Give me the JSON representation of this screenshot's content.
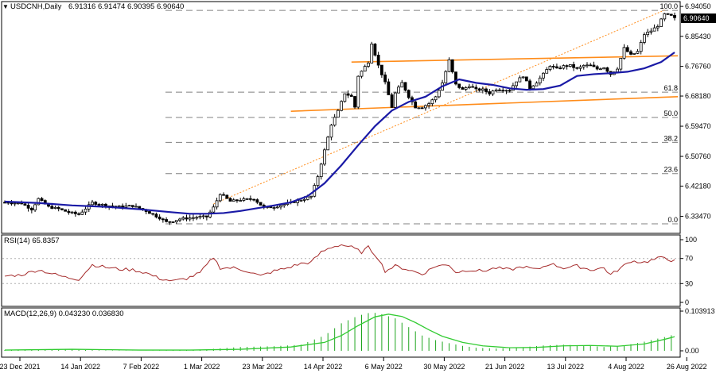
{
  "header": {
    "symbol": "USDCNH,Daily",
    "ohlc": "6.91316 6.91474 6.90395 6.90640"
  },
  "colors": {
    "candle": "#000000",
    "ma": "#1a1aa6",
    "channel": "#ff8c1a",
    "fib_trend": "#ff8c1a",
    "rsi": "#a52a2a",
    "macd_hist": "#1fa51f",
    "macd_signal": "#33cc33",
    "grid": "#808080"
  },
  "chart_data": [
    {
      "type": "candlestick",
      "panel": "price",
      "title": "USDCNH,Daily",
      "ylim": [
        6.29,
        6.95
      ],
      "y_ticks": [
        "6.94050",
        "6.85430",
        "6.76760",
        "6.68180",
        "6.59470",
        "6.50760",
        "6.42180",
        "6.33470"
      ],
      "current_price": "6.90640",
      "x_ticks": [
        "23 Dec 2021",
        "14 Jan 2022",
        "7 Feb 2022",
        "1 Mar 2022",
        "23 Mar 2022",
        "14 Apr 2022",
        "6 May 2022",
        "30 May 2022",
        "21 Jun 2022",
        "13 Jul 2022",
        "4 Aug 2022",
        "26 Aug 2022"
      ],
      "fibonacci": {
        "levels": [
          {
            "label": "100.0",
            "value": 6.929
          },
          {
            "label": "61.8",
            "value": 6.693
          },
          {
            "label": "50.0",
            "value": 6.62
          },
          {
            "label": "38.2",
            "value": 6.548
          },
          {
            "label": "23.6",
            "value": 6.458
          },
          {
            "label": "0.0",
            "value": 6.313
          }
        ],
        "trend_from": {
          "bar": 62,
          "value": 6.37
        },
        "trend_to": {
          "bar": 196,
          "value": 6.93
        }
      },
      "channel_lines": [
        {
          "from": {
            "bar": 103,
            "value": 6.78
          },
          "to": {
            "bar": 201,
            "value": 6.798
          }
        },
        {
          "from": {
            "bar": 85,
            "value": 6.638
          },
          "to": {
            "bar": 201,
            "value": 6.68
          }
        }
      ],
      "moving_average": [
        [
          0,
          6.377
        ],
        [
          10,
          6.373
        ],
        [
          20,
          6.366
        ],
        [
          30,
          6.362
        ],
        [
          40,
          6.355
        ],
        [
          50,
          6.346
        ],
        [
          55,
          6.342
        ],
        [
          60,
          6.342
        ],
        [
          65,
          6.344
        ],
        [
          70,
          6.35
        ],
        [
          75,
          6.358
        ],
        [
          80,
          6.366
        ],
        [
          85,
          6.375
        ],
        [
          90,
          6.393
        ],
        [
          95,
          6.43
        ],
        [
          100,
          6.482
        ],
        [
          105,
          6.54
        ],
        [
          110,
          6.595
        ],
        [
          115,
          6.64
        ],
        [
          120,
          6.665
        ],
        [
          125,
          6.68
        ],
        [
          130,
          6.71
        ],
        [
          135,
          6.73
        ],
        [
          140,
          6.72
        ],
        [
          145,
          6.714
        ],
        [
          150,
          6.704
        ],
        [
          155,
          6.7
        ],
        [
          160,
          6.702
        ],
        [
          165,
          6.712
        ],
        [
          170,
          6.74
        ],
        [
          175,
          6.745
        ],
        [
          180,
          6.748
        ],
        [
          185,
          6.752
        ],
        [
          190,
          6.762
        ],
        [
          195,
          6.78
        ],
        [
          199,
          6.808
        ]
      ],
      "ohlc_anchors": [
        [
          0,
          6.375
        ],
        [
          5,
          6.372
        ],
        [
          8,
          6.355
        ],
        [
          10,
          6.385
        ],
        [
          13,
          6.362
        ],
        [
          16,
          6.356
        ],
        [
          19,
          6.346
        ],
        [
          22,
          6.34
        ],
        [
          26,
          6.374
        ],
        [
          30,
          6.366
        ],
        [
          34,
          6.362
        ],
        [
          38,
          6.365
        ],
        [
          42,
          6.35
        ],
        [
          46,
          6.33
        ],
        [
          48,
          6.318
        ],
        [
          50,
          6.321
        ],
        [
          52,
          6.327
        ],
        [
          55,
          6.33
        ],
        [
          58,
          6.333
        ],
        [
          60,
          6.333
        ],
        [
          62,
          6.36
        ],
        [
          64,
          6.4
        ],
        [
          67,
          6.378
        ],
        [
          70,
          6.382
        ],
        [
          74,
          6.385
        ],
        [
          77,
          6.359
        ],
        [
          80,
          6.362
        ],
        [
          84,
          6.371
        ],
        [
          88,
          6.382
        ],
        [
          91,
          6.392
        ],
        [
          93,
          6.45
        ],
        [
          95,
          6.525
        ],
        [
          97,
          6.6
        ],
        [
          99,
          6.638
        ],
        [
          101,
          6.69
        ],
        [
          103,
          6.68
        ],
        [
          104,
          6.65
        ],
        [
          105,
          6.74
        ],
        [
          108,
          6.78
        ],
        [
          109,
          6.835
        ],
        [
          111,
          6.77
        ],
        [
          113,
          6.72
        ],
        [
          115,
          6.65
        ],
        [
          116,
          6.69
        ],
        [
          118,
          6.72
        ],
        [
          120,
          6.68
        ],
        [
          122,
          6.65
        ],
        [
          124,
          6.65
        ],
        [
          126,
          6.66
        ],
        [
          128,
          6.68
        ],
        [
          130,
          6.72
        ],
        [
          132,
          6.785
        ],
        [
          134,
          6.715
        ],
        [
          136,
          6.7
        ],
        [
          138,
          6.712
        ],
        [
          140,
          6.7
        ],
        [
          142,
          6.7
        ],
        [
          144,
          6.69
        ],
        [
          146,
          6.702
        ],
        [
          148,
          6.7
        ],
        [
          150,
          6.7
        ],
        [
          152,
          6.725
        ],
        [
          154,
          6.74
        ],
        [
          156,
          6.705
        ],
        [
          158,
          6.722
        ],
        [
          160,
          6.745
        ],
        [
          162,
          6.77
        ],
        [
          164,
          6.76
        ],
        [
          166,
          6.768
        ],
        [
          168,
          6.77
        ],
        [
          170,
          6.76
        ],
        [
          172,
          6.77
        ],
        [
          174,
          6.77
        ],
        [
          176,
          6.76
        ],
        [
          178,
          6.765
        ],
        [
          180,
          6.745
        ],
        [
          182,
          6.762
        ],
        [
          184,
          6.82
        ],
        [
          186,
          6.8
        ],
        [
          188,
          6.81
        ],
        [
          190,
          6.86
        ],
        [
          192,
          6.87
        ],
        [
          194,
          6.885
        ],
        [
          196,
          6.918
        ],
        [
          198,
          6.913
        ],
        [
          199,
          6.906
        ]
      ]
    },
    {
      "type": "line",
      "panel": "rsi",
      "title": "RSI(14) 65.8357",
      "ylim": [
        0,
        100
      ],
      "y_ticks": [
        {
          "label": "100",
          "value": 100
        },
        {
          "label": "70",
          "value": 70
        },
        {
          "label": "30",
          "value": 30
        },
        {
          "label": "0",
          "value": 0
        }
      ],
      "levels": [
        70,
        30
      ],
      "points": [
        [
          0,
          42
        ],
        [
          5,
          44
        ],
        [
          10,
          52
        ],
        [
          14,
          46
        ],
        [
          18,
          40
        ],
        [
          22,
          37
        ],
        [
          26,
          60
        ],
        [
          30,
          56
        ],
        [
          34,
          53
        ],
        [
          38,
          52
        ],
        [
          42,
          47
        ],
        [
          46,
          38
        ],
        [
          50,
          34
        ],
        [
          54,
          38
        ],
        [
          58,
          47
        ],
        [
          62,
          72
        ],
        [
          64,
          55
        ],
        [
          68,
          55
        ],
        [
          72,
          50
        ],
        [
          76,
          42
        ],
        [
          80,
          50
        ],
        [
          84,
          55
        ],
        [
          88,
          62
        ],
        [
          91,
          64
        ],
        [
          94,
          80
        ],
        [
          97,
          88
        ],
        [
          100,
          92
        ],
        [
          103,
          88
        ],
        [
          106,
          80
        ],
        [
          108,
          88
        ],
        [
          111,
          70
        ],
        [
          113,
          50
        ],
        [
          116,
          58
        ],
        [
          120,
          52
        ],
        [
          124,
          45
        ],
        [
          128,
          58
        ],
        [
          132,
          60
        ],
        [
          134,
          48
        ],
        [
          138,
          52
        ],
        [
          142,
          50
        ],
        [
          146,
          55
        ],
        [
          150,
          52
        ],
        [
          154,
          57
        ],
        [
          158,
          52
        ],
        [
          162,
          62
        ],
        [
          166,
          55
        ],
        [
          170,
          58
        ],
        [
          174,
          52
        ],
        [
          178,
          55
        ],
        [
          180,
          44
        ],
        [
          183,
          55
        ],
        [
          186,
          66
        ],
        [
          190,
          64
        ],
        [
          194,
          70
        ],
        [
          196,
          72
        ],
        [
          198,
          67
        ],
        [
          199,
          66
        ]
      ]
    },
    {
      "type": "bar",
      "panel": "macd",
      "title": "MACD(12,26,9) 0.043230 0.036830",
      "ylim": [
        0,
        0.103913
      ],
      "y_ticks": [
        {
          "label": "0.103913",
          "value": 0.103913
        },
        {
          "label": "0.00",
          "value": 0
        }
      ],
      "histogram_anchors": [
        [
          0,
          0.002
        ],
        [
          10,
          0.004
        ],
        [
          20,
          0.003
        ],
        [
          30,
          0.001
        ],
        [
          40,
          0.0
        ],
        [
          50,
          0.001
        ],
        [
          60,
          0.004
        ],
        [
          70,
          0.01
        ],
        [
          80,
          0.012
        ],
        [
          88,
          0.016
        ],
        [
          95,
          0.04
        ],
        [
          100,
          0.072
        ],
        [
          105,
          0.092
        ],
        [
          109,
          0.101
        ],
        [
          112,
          0.096
        ],
        [
          116,
          0.085
        ],
        [
          120,
          0.062
        ],
        [
          124,
          0.04
        ],
        [
          128,
          0.028
        ],
        [
          132,
          0.02
        ],
        [
          136,
          0.013
        ],
        [
          140,
          0.008
        ],
        [
          146,
          0.006
        ],
        [
          152,
          0.008
        ],
        [
          160,
          0.014
        ],
        [
          166,
          0.016
        ],
        [
          172,
          0.014
        ],
        [
          178,
          0.01
        ],
        [
          184,
          0.014
        ],
        [
          190,
          0.024
        ],
        [
          196,
          0.036
        ],
        [
          199,
          0.043
        ]
      ],
      "signal_line": [
        [
          0,
          0.002
        ],
        [
          20,
          0.004
        ],
        [
          40,
          0.002
        ],
        [
          55,
          0.002
        ],
        [
          70,
          0.004
        ],
        [
          85,
          0.01
        ],
        [
          95,
          0.022
        ],
        [
          100,
          0.04
        ],
        [
          105,
          0.066
        ],
        [
          110,
          0.089
        ],
        [
          114,
          0.096
        ],
        [
          118,
          0.09
        ],
        [
          122,
          0.074
        ],
        [
          126,
          0.055
        ],
        [
          130,
          0.038
        ],
        [
          136,
          0.022
        ],
        [
          142,
          0.013
        ],
        [
          150,
          0.008
        ],
        [
          158,
          0.009
        ],
        [
          166,
          0.013
        ],
        [
          174,
          0.014
        ],
        [
          182,
          0.012
        ],
        [
          190,
          0.018
        ],
        [
          196,
          0.03
        ],
        [
          199,
          0.037
        ]
      ]
    }
  ]
}
